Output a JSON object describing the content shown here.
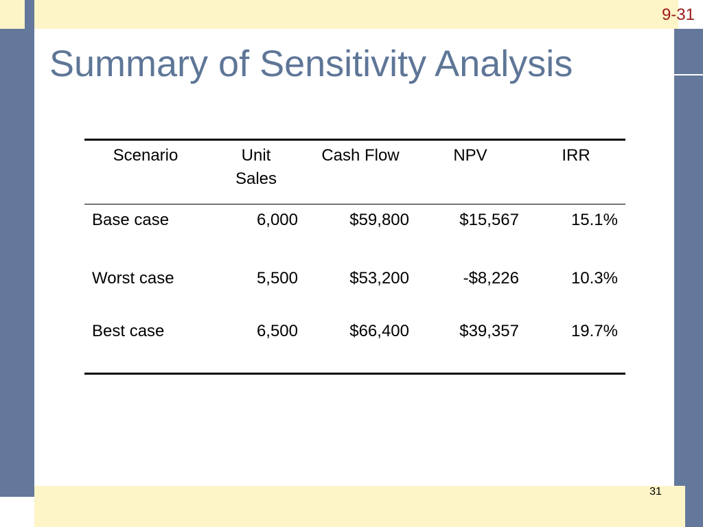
{
  "slide": {
    "code": "9-31",
    "title": "Summary of Sensitivity Analysis",
    "page_number": "31"
  },
  "table": {
    "headers": {
      "scenario": "Scenario",
      "unit_sales_line1": "Unit",
      "unit_sales_line2": "Sales",
      "cash_flow": "Cash Flow",
      "npv": "NPV",
      "irr": "IRR"
    },
    "rows": [
      {
        "scenario": "Base case",
        "unit_sales": "6,000",
        "cash_flow": "$59,800",
        "npv": "$15,567",
        "irr": "15.1%"
      },
      {
        "scenario": "Worst case",
        "unit_sales": "5,500",
        "cash_flow": "$53,200",
        "npv": "-$8,226",
        "irr": "10.3%"
      },
      {
        "scenario": "Best case",
        "unit_sales": "6,500",
        "cash_flow": "$66,400",
        "npv": "$39,357",
        "irr": "19.7%"
      }
    ]
  },
  "colors": {
    "title": "#5e7697",
    "frame_blue": "#63789b",
    "frame_yellow": "#fdf4c8",
    "slide_code": "#9c1a1a"
  }
}
